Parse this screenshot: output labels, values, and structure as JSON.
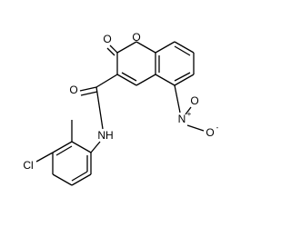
{
  "atoms": [
    {
      "label": "O"
    },
    {
      "label": "O"
    },
    {
      "label": "O"
    },
    {
      "label": "NH"
    },
    {
      "label": "Cl"
    },
    {
      "label": "N",
      "charge": "+"
    },
    {
      "label": "O"
    },
    {
      "label": "O",
      "charge": "-"
    }
  ]
}
